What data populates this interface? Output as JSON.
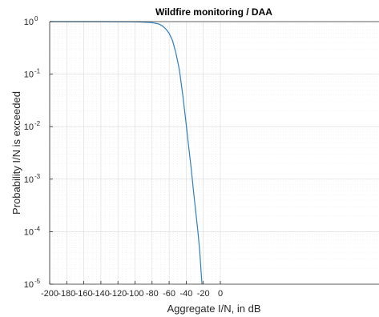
{
  "chart_data": {
    "type": "line",
    "title": "Wildfire monitoring / DAA",
    "xlabel": "Aggregate I/N, in dB",
    "ylabel": "Probability I/N is exceeded",
    "xlim": [
      -200,
      0
    ],
    "ylim": [
      1e-05,
      1
    ],
    "yscale": "log",
    "grid": true,
    "minor_grid": true,
    "x_ticks": [
      -200,
      -180,
      -160,
      -140,
      -120,
      -100,
      -80,
      -60,
      -40,
      -20,
      0
    ],
    "x_tick_labels": [
      "-200",
      "-180",
      "-160",
      "-140",
      "-120",
      "-100",
      "-80",
      "-60",
      "-40",
      "-20",
      "0"
    ],
    "y_ticks": [
      {
        "base": "10",
        "exp": "0",
        "value": 1
      },
      {
        "base": "10",
        "exp": "-1",
        "value": 0.1
      },
      {
        "base": "10",
        "exp": "-2",
        "value": 0.01
      },
      {
        "base": "10",
        "exp": "-3",
        "value": 0.001
      },
      {
        "base": "10",
        "exp": "-4",
        "value": 0.0001
      },
      {
        "base": "10",
        "exp": "-5",
        "value": 1e-05
      }
    ],
    "series": [
      {
        "color": "#2f7fbf",
        "x": [
          -200,
          -180,
          -160,
          -140,
          -125,
          -110,
          -100,
          -95,
          -90,
          -85,
          -80,
          -76,
          -72,
          -68,
          -64,
          -60,
          -56,
          -52,
          -48,
          -44,
          -40,
          -37,
          -34,
          -31,
          -28,
          -26,
          -24,
          -22.5,
          -21.5
        ],
        "y": [
          1,
          1,
          1,
          0.999,
          0.998,
          0.995,
          0.99,
          0.985,
          0.98,
          0.97,
          0.955,
          0.93,
          0.9,
          0.83,
          0.73,
          0.6,
          0.43,
          0.25,
          0.12,
          0.04,
          0.011,
          0.004,
          0.0015,
          0.0005,
          0.00018,
          9e-05,
          4e-05,
          1.7e-05,
          1e-05
        ]
      }
    ]
  }
}
